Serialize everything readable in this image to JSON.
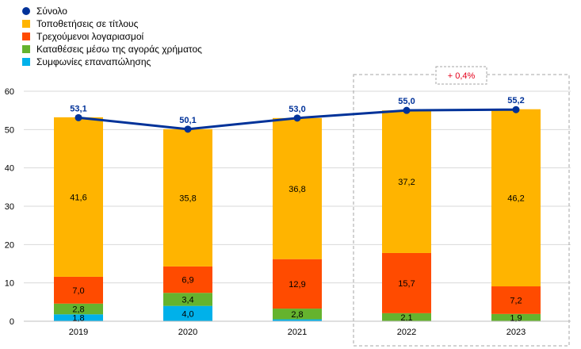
{
  "chart_data": {
    "type": "bar",
    "stacked": true,
    "categories": [
      "2019",
      "2020",
      "2021",
      "2022",
      "2023"
    ],
    "ylim": [
      0,
      60
    ],
    "yticks": [
      0,
      10,
      20,
      30,
      40,
      50,
      60
    ],
    "grid": true,
    "legend_position": "top-left",
    "series": [
      {
        "name": "Συμφωνίες επαναπώλησης",
        "color": "#00b1ea",
        "values": [
          1.8,
          4.0,
          0.5,
          0.0,
          0.0
        ],
        "labels": [
          "1,8",
          "4,0",
          "",
          "",
          ""
        ]
      },
      {
        "name": "Καταθέσεις μέσω της αγοράς χρήματος",
        "color": "#65b32e",
        "values": [
          2.8,
          3.4,
          2.8,
          2.1,
          1.9
        ],
        "labels": [
          "2,8",
          "3,4",
          "2,8",
          "2,1",
          "1,9"
        ]
      },
      {
        "name": "Τρεχούμενοι λογαριασμοί",
        "color": "#ff4b00",
        "values": [
          7.0,
          6.9,
          12.9,
          15.7,
          7.2
        ],
        "labels": [
          "7,0",
          "6,9",
          "12,9",
          "15,7",
          "7,2"
        ]
      },
      {
        "name": "Τοποθετήσεις σε τίτλους",
        "color": "#ffb400",
        "values": [
          41.6,
          35.8,
          36.8,
          37.2,
          46.2
        ],
        "labels": [
          "41,6",
          "35,8",
          "36,8",
          "37,2",
          "46,2"
        ]
      }
    ],
    "total": {
      "name": "Σύνολο",
      "color": "#003299",
      "type": "line",
      "values": [
        53.1,
        50.1,
        53.0,
        55.0,
        55.2
      ],
      "labels": [
        "53,1",
        "50,1",
        "53,0",
        "55,0",
        "55,2"
      ]
    },
    "annotation": {
      "text": "+ 0,4%",
      "color": "#e4001b",
      "categories": [
        "2022",
        "2023"
      ]
    }
  }
}
